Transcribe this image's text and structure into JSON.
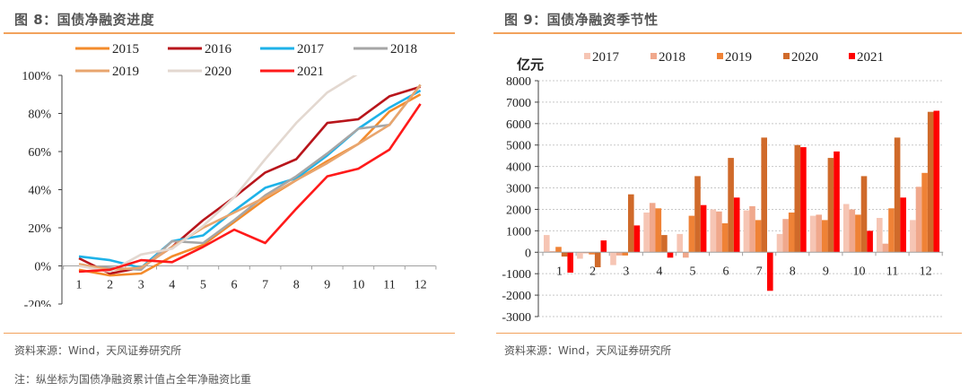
{
  "left": {
    "title": "图 8：国债净融资进度",
    "source": "资料来源：Wind，天风证券研究所",
    "note": "注：纵坐标为国债净融资累计值占全年净融资比重"
  },
  "right": {
    "title": "图 9：国债净融资季节性",
    "source": "资料来源：Wind，天风证券研究所"
  },
  "colors": {
    "rule": "#f2a25c"
  },
  "chart_data": [
    {
      "type": "line",
      "title": "国债净融资进度",
      "xlabel": "",
      "ylabel": "",
      "x": [
        1,
        2,
        3,
        4,
        5,
        6,
        7,
        8,
        9,
        10,
        11,
        12
      ],
      "ylim": [
        -0.2,
        1.0
      ],
      "yticks": [
        -0.2,
        0,
        0.2,
        0.4,
        0.6,
        0.8,
        1.0
      ],
      "ytick_labels": [
        "-20%",
        "0%",
        "20%",
        "40%",
        "60%",
        "80%",
        "100%"
      ],
      "xtick_labels": [
        "1",
        "2",
        "3",
        "4",
        "5",
        "6",
        "7",
        "8",
        "9",
        "10",
        "11",
        "12"
      ],
      "legend_position": "top",
      "grid": false,
      "series": [
        {
          "name": "2015",
          "color": "#f38b2b",
          "values": [
            -0.02,
            -0.05,
            -0.04,
            0.05,
            0.11,
            0.23,
            0.35,
            0.45,
            0.55,
            0.64,
            0.81,
            0.9
          ]
        },
        {
          "name": "2016",
          "color": "#b8151b",
          "values": [
            0.04,
            -0.04,
            -0.01,
            0.1,
            0.24,
            0.36,
            0.49,
            0.56,
            0.75,
            0.77,
            0.89,
            0.94
          ]
        },
        {
          "name": "2017",
          "color": "#1eb2e8",
          "values": [
            0.05,
            0.03,
            -0.01,
            0.13,
            0.16,
            0.29,
            0.41,
            0.46,
            0.58,
            0.72,
            0.83,
            0.92
          ]
        },
        {
          "name": "2018",
          "color": "#a6a6a6",
          "values": [
            0.0,
            -0.01,
            -0.02,
            0.13,
            0.12,
            0.24,
            0.37,
            0.47,
            0.59,
            0.72,
            0.74,
            0.95
          ]
        },
        {
          "name": "2019",
          "color": "#e8a56e",
          "values": [
            0.01,
            -0.02,
            -0.01,
            0.1,
            0.2,
            0.28,
            0.36,
            0.45,
            0.54,
            0.64,
            0.74,
            0.95
          ]
        },
        {
          "name": "2020",
          "color": "#e3d8d0",
          "values": [
            0.0,
            -0.03,
            0.06,
            0.09,
            0.21,
            0.36,
            0.56,
            0.75,
            0.91,
            1.01,
            null,
            null
          ]
        },
        {
          "name": "2021",
          "color": "#ff1a1a",
          "values": [
            -0.03,
            -0.02,
            0.03,
            0.02,
            0.1,
            0.19,
            0.12,
            0.3,
            0.47,
            0.51,
            0.61,
            0.85
          ]
        }
      ]
    },
    {
      "type": "bar",
      "title": "国债净融资季节性",
      "ylabel": "亿元",
      "xlabel": "",
      "categories": [
        "1",
        "2",
        "3",
        "4",
        "5",
        "6",
        "7",
        "8",
        "9",
        "10",
        "11",
        "12"
      ],
      "ylim": [
        -3000,
        8000
      ],
      "yticks": [
        -3000,
        -2000,
        -1000,
        0,
        1000,
        2000,
        3000,
        4000,
        5000,
        6000,
        7000,
        8000
      ],
      "legend_position": "top",
      "grid": true,
      "series": [
        {
          "name": "2017",
          "color": "#f6c5b4",
          "values": [
            800,
            -300,
            -600,
            1850,
            850,
            2000,
            1950,
            850,
            1700,
            2250,
            1600,
            1500
          ]
        },
        {
          "name": "2018",
          "color": "#f0a88c",
          "values": [
            50,
            -50,
            -150,
            2300,
            -250,
            1900,
            2150,
            1550,
            1750,
            2000,
            400,
            3050
          ]
        },
        {
          "name": "2019",
          "color": "#ef8236",
          "values": [
            250,
            -100,
            -150,
            2050,
            1700,
            1350,
            1500,
            1850,
            1500,
            1750,
            2050,
            3700
          ]
        },
        {
          "name": "2020",
          "color": "#d06a2a",
          "values": [
            -200,
            -700,
            2700,
            800,
            3550,
            4400,
            5350,
            5000,
            4400,
            3550,
            5350,
            6550
          ]
        },
        {
          "name": "2021",
          "color": "#ff0000",
          "values": [
            -950,
            550,
            1250,
            -250,
            2200,
            2550,
            -1800,
            4900,
            4700,
            1000,
            2550,
            6600
          ]
        }
      ]
    }
  ]
}
